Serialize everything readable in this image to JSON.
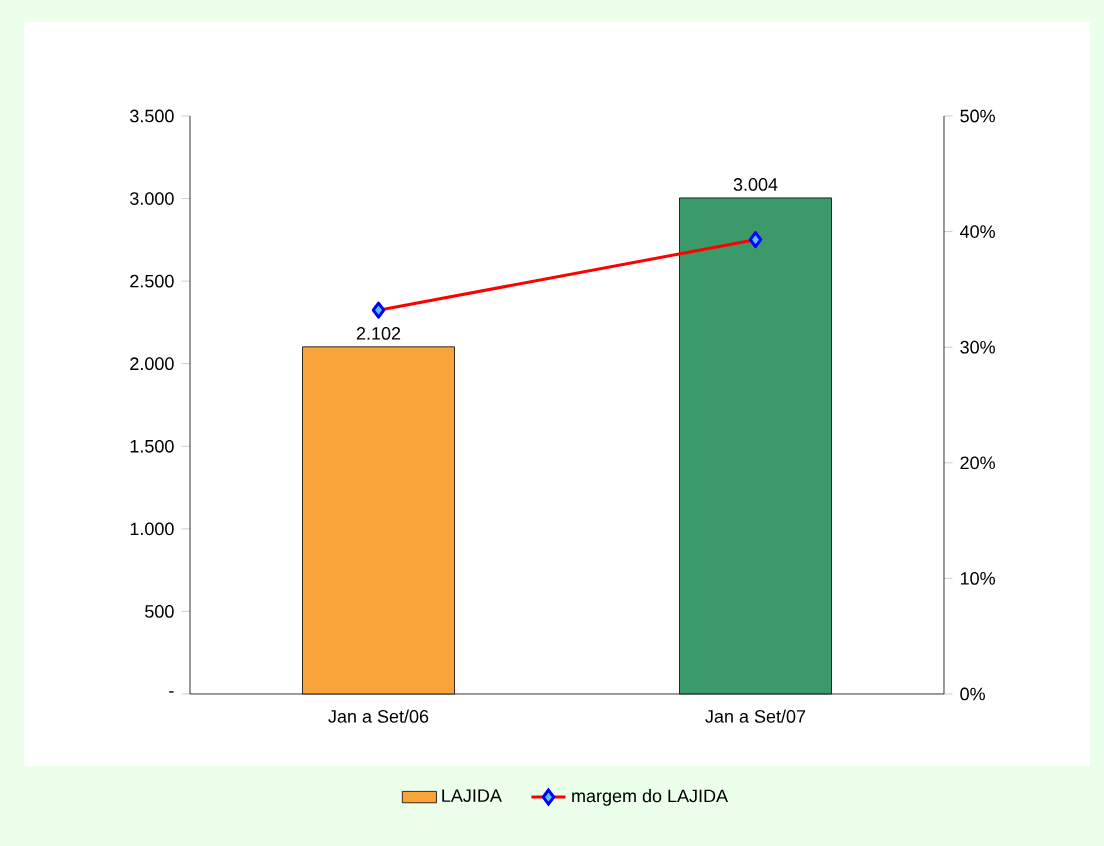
{
  "chart_data": {
    "type": "bar",
    "categories": [
      "Jan a Set/06",
      "Jan a Set/07"
    ],
    "series": [
      {
        "name": "LAJIDA",
        "colors": [
          "#f9a43a",
          "#3a9a6a"
        ],
        "values": [
          2102,
          3004
        ],
        "value_labels": [
          "2.102",
          "3.004"
        ]
      },
      {
        "name": "margem do LAJIDA",
        "type": "line",
        "axis": "y2",
        "color": "#ff0000",
        "values": [
          33.2,
          39.3
        ]
      }
    ],
    "marker": "diamond",
    "ylim": [
      0,
      3500
    ],
    "yticks": [
      {
        "value": 0,
        "label": "-"
      },
      {
        "value": 500,
        "label": "500"
      },
      {
        "value": 1000,
        "label": "1.000"
      },
      {
        "value": 1500,
        "label": "1.500"
      },
      {
        "value": 2000,
        "label": "2.000"
      },
      {
        "value": 2500,
        "label": "2.500"
      },
      {
        "value": 3000,
        "label": "3.000"
      },
      {
        "value": 3500,
        "label": "3.500"
      }
    ],
    "y2lim": [
      0,
      50
    ],
    "y2ticks": [
      {
        "value": 0,
        "label": "0%"
      },
      {
        "value": 10,
        "label": "10%"
      },
      {
        "value": 20,
        "label": "20%"
      },
      {
        "value": 30,
        "label": "30%"
      },
      {
        "value": 40,
        "label": "40%"
      },
      {
        "value": 50,
        "label": "50%"
      }
    ],
    "legend": "bottom"
  }
}
